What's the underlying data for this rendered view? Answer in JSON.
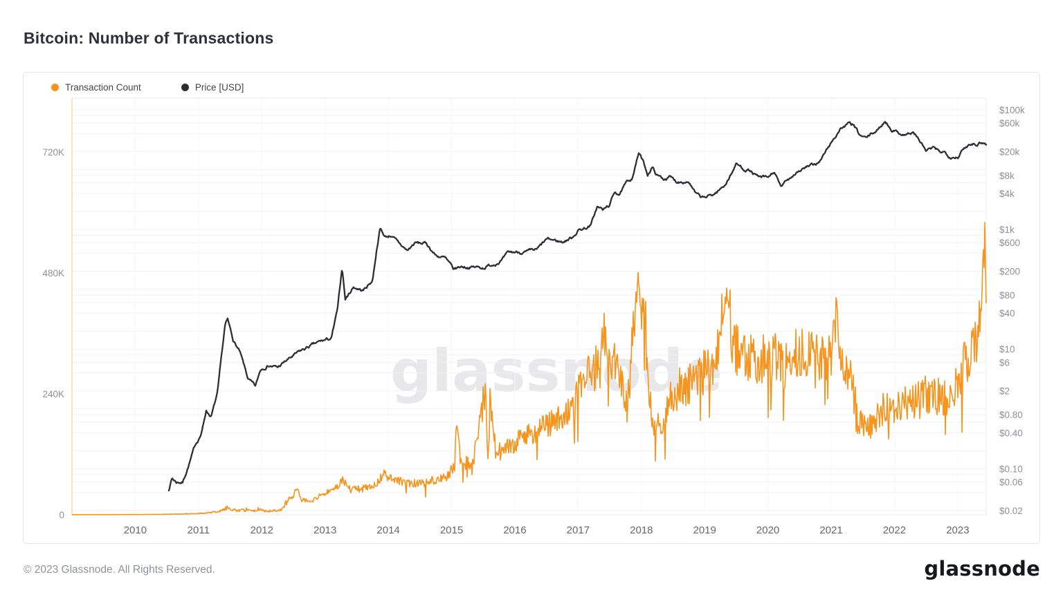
{
  "title": "Bitcoin: Number of Transactions",
  "watermark": "glassnode",
  "footer": {
    "copyright": "© 2023 Glassnode. All Rights Reserved.",
    "logo": "glassnode"
  },
  "colors": {
    "transaction_count": "#F7941D",
    "price": "#2B2E33",
    "grid": "#f1f1f4",
    "grid_vertical": "#f6f6f8",
    "frame": "#e8e9ec",
    "left_axis_line": "#f8d8a8",
    "watermark": "#e8e8eb"
  },
  "legend": [
    {
      "label": "Transaction Count",
      "color": "#F7941D"
    },
    {
      "label": "Price [USD]",
      "color": "#2B2E33"
    }
  ],
  "axes": {
    "left": {
      "ticks": [
        {
          "label": "720K",
          "value": 720000
        },
        {
          "label": "480K",
          "value": 480000
        },
        {
          "label": "240K",
          "value": 240000
        },
        {
          "label": "0",
          "value": 0
        }
      ]
    },
    "right": {
      "ticks": [
        {
          "label": "$100k",
          "value": 100000
        },
        {
          "label": "$60k",
          "value": 60000
        },
        {
          "label": "$20k",
          "value": 20000
        },
        {
          "label": "$8k",
          "value": 8000
        },
        {
          "label": "$4k",
          "value": 4000
        },
        {
          "label": "$1k",
          "value": 1000
        },
        {
          "label": "$600",
          "value": 600
        },
        {
          "label": "$200",
          "value": 200
        },
        {
          "label": "$80",
          "value": 80
        },
        {
          "label": "$40",
          "value": 40
        },
        {
          "label": "$10",
          "value": 10
        },
        {
          "label": "$6",
          "value": 6
        },
        {
          "label": "$2",
          "value": 2
        },
        {
          "label": "$0.80",
          "value": 0.8
        },
        {
          "label": "$0.40",
          "value": 0.4
        },
        {
          "label": "$0.10",
          "value": 0.1
        },
        {
          "label": "$0.06",
          "value": 0.06
        },
        {
          "label": "$0.02",
          "value": 0.02
        }
      ],
      "grid_values": [
        0.02,
        0.04,
        0.06,
        0.08,
        0.1,
        0.2,
        0.4,
        0.6,
        0.8,
        1,
        2,
        4,
        6,
        8,
        10,
        20,
        40,
        60,
        80,
        100,
        200,
        400,
        600,
        800,
        1000,
        2000,
        4000,
        6000,
        8000,
        10000,
        20000,
        40000,
        60000,
        80000,
        100000
      ]
    },
    "x": {
      "years": [
        2010,
        2011,
        2012,
        2013,
        2014,
        2015,
        2016,
        2017,
        2018,
        2019,
        2020,
        2021,
        2022,
        2023
      ],
      "labels": [
        "2010",
        "2011",
        "2012",
        "2013",
        "2014",
        "2015",
        "2016",
        "2017",
        "2018",
        "2019",
        "2020",
        "2021",
        "2022",
        "2023"
      ]
    }
  },
  "chart_data": {
    "type": "line",
    "title": "Bitcoin: Number of Transactions",
    "x_range": [
      2009.0,
      2023.45
    ],
    "left_axis": {
      "label": "Transaction Count",
      "scale": "linear",
      "range": [
        0,
        827000
      ],
      "ticks": [
        0,
        240000,
        480000,
        720000
      ]
    },
    "right_axis": {
      "label": "Price [USD]",
      "scale": "log",
      "range": [
        0.015,
        140000
      ]
    },
    "grid": "on",
    "legend_position": "top-left",
    "series": [
      {
        "name": "Transaction Count",
        "color": "#F7941D",
        "axis": "left",
        "unit": "transactions per day",
        "style": "noisy-band",
        "points": [
          [
            2009.0,
            200
          ],
          [
            2009.5,
            300
          ],
          [
            2010.0,
            500
          ],
          [
            2010.5,
            1000
          ],
          [
            2010.9,
            2000
          ],
          [
            2011.0,
            2500
          ],
          [
            2011.3,
            6000
          ],
          [
            2011.45,
            14000
          ],
          [
            2011.6,
            9000
          ],
          [
            2011.88,
            8000
          ],
          [
            2011.95,
            12000
          ],
          [
            2012.05,
            7000
          ],
          [
            2012.3,
            9000
          ],
          [
            2012.42,
            30000
          ],
          [
            2012.5,
            38000
          ],
          [
            2012.55,
            58000
          ],
          [
            2012.62,
            30000
          ],
          [
            2012.8,
            28000
          ],
          [
            2013.0,
            44000
          ],
          [
            2013.2,
            55000
          ],
          [
            2013.28,
            70000
          ],
          [
            2013.4,
            50000
          ],
          [
            2013.6,
            52000
          ],
          [
            2013.8,
            60000
          ],
          [
            2013.92,
            80000
          ],
          [
            2014.1,
            70000
          ],
          [
            2014.3,
            62000
          ],
          [
            2014.6,
            64000
          ],
          [
            2014.9,
            75000
          ],
          [
            2015.05,
            95000
          ],
          [
            2015.08,
            190000
          ],
          [
            2015.15,
            100000
          ],
          [
            2015.35,
            108000
          ],
          [
            2015.53,
            250000
          ],
          [
            2015.58,
            112000
          ],
          [
            2015.61,
            230000
          ],
          [
            2015.7,
            120000
          ],
          [
            2015.9,
            135000
          ],
          [
            2016.1,
            155000
          ],
          [
            2016.3,
            165000
          ],
          [
            2016.5,
            180000
          ],
          [
            2016.7,
            190000
          ],
          [
            2016.9,
            210000
          ],
          [
            2017.05,
            255000
          ],
          [
            2017.2,
            280000
          ],
          [
            2017.35,
            300000
          ],
          [
            2017.42,
            370000
          ],
          [
            2017.5,
            290000
          ],
          [
            2017.62,
            300000
          ],
          [
            2017.7,
            250000
          ],
          [
            2017.78,
            210000
          ],
          [
            2017.85,
            330000
          ],
          [
            2017.92,
            430000
          ],
          [
            2017.96,
            480000
          ],
          [
            2018.0,
            390000
          ],
          [
            2018.05,
            420000
          ],
          [
            2018.12,
            230000
          ],
          [
            2018.2,
            170000
          ],
          [
            2018.3,
            180000
          ],
          [
            2018.45,
            225000
          ],
          [
            2018.6,
            255000
          ],
          [
            2018.8,
            260000
          ],
          [
            2019.0,
            285000
          ],
          [
            2019.2,
            330000
          ],
          [
            2019.35,
            450000
          ],
          [
            2019.45,
            330000
          ],
          [
            2019.6,
            320000
          ],
          [
            2019.8,
            305000
          ],
          [
            2020.0,
            315000
          ],
          [
            2020.15,
            320000
          ],
          [
            2020.25,
            290000
          ],
          [
            2020.45,
            320000
          ],
          [
            2020.65,
            315000
          ],
          [
            2020.85,
            305000
          ],
          [
            2021.0,
            315000
          ],
          [
            2021.06,
            390000
          ],
          [
            2021.15,
            310000
          ],
          [
            2021.3,
            270000
          ],
          [
            2021.45,
            185000
          ],
          [
            2021.55,
            165000
          ],
          [
            2021.62,
            175000
          ],
          [
            2021.75,
            205000
          ],
          [
            2021.9,
            215000
          ],
          [
            2022.1,
            220000
          ],
          [
            2022.3,
            225000
          ],
          [
            2022.5,
            240000
          ],
          [
            2022.7,
            235000
          ],
          [
            2022.9,
            235000
          ],
          [
            2023.05,
            285000
          ],
          [
            2023.15,
            310000
          ],
          [
            2023.25,
            340000
          ],
          [
            2023.32,
            365000
          ],
          [
            2023.38,
            420000
          ],
          [
            2023.4,
            500000
          ],
          [
            2023.42,
            668000
          ],
          [
            2023.435,
            510000
          ],
          [
            2023.45,
            420000
          ]
        ]
      },
      {
        "name": "Price [USD]",
        "color": "#2B2E33",
        "axis": "right",
        "unit": "USD",
        "style": "line",
        "points": [
          [
            2010.53,
            0.045
          ],
          [
            2010.58,
            0.07
          ],
          [
            2010.65,
            0.06
          ],
          [
            2010.75,
            0.06
          ],
          [
            2010.85,
            0.12
          ],
          [
            2010.95,
            0.25
          ],
          [
            2011.05,
            0.4
          ],
          [
            2011.12,
            0.95
          ],
          [
            2011.2,
            0.75
          ],
          [
            2011.3,
            1.8
          ],
          [
            2011.42,
            25
          ],
          [
            2011.46,
            30
          ],
          [
            2011.55,
            14
          ],
          [
            2011.65,
            9
          ],
          [
            2011.78,
            3.2
          ],
          [
            2011.9,
            2.3
          ],
          [
            2011.98,
            4.5
          ],
          [
            2012.1,
            5.5
          ],
          [
            2012.25,
            4.9
          ],
          [
            2012.4,
            6.5
          ],
          [
            2012.6,
            9
          ],
          [
            2012.75,
            11
          ],
          [
            2012.95,
            13.5
          ],
          [
            2013.1,
            15
          ],
          [
            2013.2,
            47
          ],
          [
            2013.27,
            230
          ],
          [
            2013.32,
            68
          ],
          [
            2013.45,
            110
          ],
          [
            2013.6,
            95
          ],
          [
            2013.75,
            140
          ],
          [
            2013.82,
            500
          ],
          [
            2013.87,
            1050
          ],
          [
            2013.95,
            750
          ],
          [
            2014.05,
            800
          ],
          [
            2014.15,
            600
          ],
          [
            2014.3,
            440
          ],
          [
            2014.42,
            590
          ],
          [
            2014.6,
            580
          ],
          [
            2014.75,
            370
          ],
          [
            2014.9,
            330
          ],
          [
            2015.03,
            210
          ],
          [
            2015.15,
            240
          ],
          [
            2015.3,
            235
          ],
          [
            2015.5,
            230
          ],
          [
            2015.65,
            260
          ],
          [
            2015.8,
            310
          ],
          [
            2015.9,
            400
          ],
          [
            2016.05,
            420
          ],
          [
            2016.2,
            415
          ],
          [
            2016.35,
            450
          ],
          [
            2016.5,
            670
          ],
          [
            2016.6,
            660
          ],
          [
            2016.75,
            615
          ],
          [
            2016.9,
            730
          ],
          [
            2017.0,
            970
          ],
          [
            2017.1,
            1050
          ],
          [
            2017.2,
            1150
          ],
          [
            2017.3,
            2400
          ],
          [
            2017.4,
            2100
          ],
          [
            2017.5,
            2550
          ],
          [
            2017.58,
            4300
          ],
          [
            2017.66,
            3900
          ],
          [
            2017.75,
            5600
          ],
          [
            2017.85,
            7200
          ],
          [
            2017.9,
            11000
          ],
          [
            2017.96,
            19200
          ],
          [
            2018.02,
            14000
          ],
          [
            2018.1,
            8300
          ],
          [
            2018.17,
            11000
          ],
          [
            2018.25,
            8000
          ],
          [
            2018.35,
            7000
          ],
          [
            2018.45,
            7500
          ],
          [
            2018.55,
            6300
          ],
          [
            2018.65,
            6500
          ],
          [
            2018.75,
            6400
          ],
          [
            2018.85,
            4000
          ],
          [
            2018.95,
            3300
          ],
          [
            2019.05,
            3500
          ],
          [
            2019.15,
            3900
          ],
          [
            2019.3,
            5200
          ],
          [
            2019.42,
            8500
          ],
          [
            2019.5,
            12500
          ],
          [
            2019.6,
            10500
          ],
          [
            2019.7,
            9800
          ],
          [
            2019.85,
            7300
          ],
          [
            2020.0,
            7200
          ],
          [
            2020.1,
            9200
          ],
          [
            2020.2,
            5000
          ],
          [
            2020.3,
            6500
          ],
          [
            2020.45,
            9200
          ],
          [
            2020.6,
            11000
          ],
          [
            2020.75,
            11800
          ],
          [
            2020.85,
            15500
          ],
          [
            2020.95,
            23000
          ],
          [
            2021.05,
            34000
          ],
          [
            2021.15,
            49000
          ],
          [
            2021.27,
            58000
          ],
          [
            2021.35,
            55000
          ],
          [
            2021.45,
            37000
          ],
          [
            2021.55,
            33000
          ],
          [
            2021.65,
            40000
          ],
          [
            2021.75,
            47000
          ],
          [
            2021.85,
            65000
          ],
          [
            2021.95,
            48000
          ],
          [
            2022.05,
            42000
          ],
          [
            2022.15,
            39000
          ],
          [
            2022.3,
            41000
          ],
          [
            2022.4,
            30000
          ],
          [
            2022.5,
            20500
          ],
          [
            2022.6,
            22500
          ],
          [
            2022.7,
            20000
          ],
          [
            2022.8,
            19500
          ],
          [
            2022.88,
            16800
          ],
          [
            2023.0,
            16600
          ],
          [
            2023.08,
            21000
          ],
          [
            2023.15,
            24500
          ],
          [
            2023.22,
            28000
          ],
          [
            2023.3,
            27500
          ],
          [
            2023.38,
            29500
          ],
          [
            2023.45,
            27000
          ]
        ]
      }
    ]
  }
}
